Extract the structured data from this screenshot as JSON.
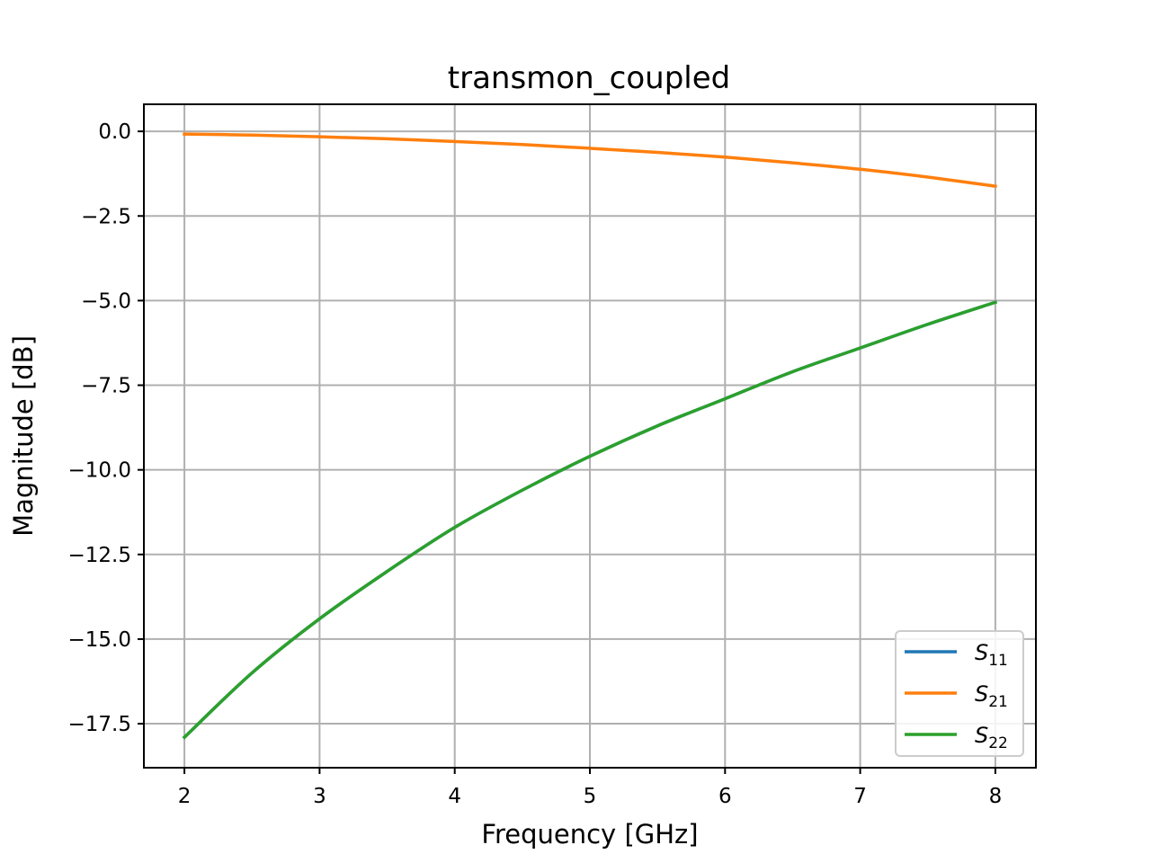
{
  "chart_data": {
    "type": "line",
    "title": "transmon_coupled",
    "xlabel": "Frequency [GHz]",
    "ylabel": "Magnitude [dB]",
    "xlim": [
      1.7,
      8.3
    ],
    "ylim": [
      -18.8,
      0.8
    ],
    "xticks": [
      2,
      3,
      4,
      5,
      6,
      7,
      8
    ],
    "xtick_labels": [
      "2",
      "3",
      "4",
      "5",
      "6",
      "7",
      "8"
    ],
    "yticks": [
      0.0,
      -2.5,
      -5.0,
      -7.5,
      -10.0,
      -12.5,
      -15.0,
      -17.5
    ],
    "ytick_labels": [
      "0.0",
      "−2.5",
      "−5.0",
      "−7.5",
      "−10.0",
      "−12.5",
      "−15.0",
      "−17.5"
    ],
    "grid": true,
    "legend_position": "bottom-right",
    "x": [
      2,
      2.5,
      3,
      3.5,
      4,
      4.5,
      5,
      5.5,
      6,
      6.5,
      7,
      7.5,
      8
    ],
    "series": [
      {
        "name": "S11",
        "label_base": "S",
        "label_sub": "11",
        "color": "#1f77b4",
        "values": [
          -17.9,
          -16.0,
          -14.4,
          -13.0,
          -11.7,
          -10.6,
          -9.6,
          -8.7,
          -7.9,
          -7.1,
          -6.4,
          -5.7,
          -5.05
        ]
      },
      {
        "name": "S21",
        "label_base": "S",
        "label_sub": "21",
        "color": "#ff7f0e",
        "values": [
          -0.08,
          -0.11,
          -0.16,
          -0.22,
          -0.3,
          -0.39,
          -0.5,
          -0.62,
          -0.76,
          -0.93,
          -1.12,
          -1.35,
          -1.62
        ]
      },
      {
        "name": "S22",
        "label_base": "S",
        "label_sub": "22",
        "color": "#2ca02c",
        "values": [
          -17.9,
          -16.0,
          -14.4,
          -13.0,
          -11.7,
          -10.6,
          -9.6,
          -8.7,
          -7.9,
          -7.1,
          -6.4,
          -5.7,
          -5.05
        ]
      }
    ]
  }
}
